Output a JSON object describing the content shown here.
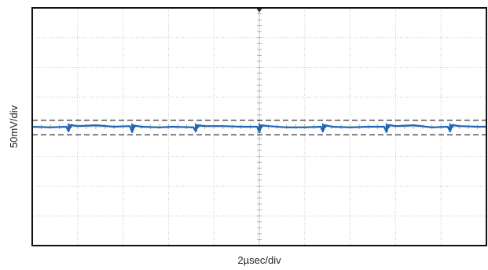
{
  "chart_data": {
    "type": "line",
    "title": "",
    "xlabel": "2µsec/div",
    "ylabel": "50mV/div",
    "grid": true,
    "divisions": {
      "x": 10,
      "y": 8
    },
    "xlim": [
      0,
      10
    ],
    "ylim": [
      -4,
      4
    ],
    "reference_lines": [
      0.22,
      -0.27
    ],
    "series": [
      {
        "color": "#1f64b4",
        "x": [
          0,
          0.4,
          0.75,
          0.8,
          0.85,
          1.0,
          1.4,
          1.8,
          2.15,
          2.2,
          2.25,
          2.4,
          2.8,
          3.1,
          3.55,
          3.6,
          3.65,
          3.8,
          4.2,
          4.6,
          4.95,
          5.0,
          5.05,
          5.2,
          5.6,
          6.0,
          6.35,
          6.4,
          6.45,
          6.6,
          7.0,
          7.4,
          7.75,
          7.8,
          7.85,
          8.0,
          8.4,
          8.8,
          9.15,
          9.2,
          9.25,
          9.4,
          9.8,
          10
        ],
        "y": [
          0.0,
          -0.02,
          0.0,
          -0.15,
          0.06,
          0.02,
          0.05,
          0.0,
          0.02,
          -0.18,
          0.04,
          0.0,
          -0.02,
          0.0,
          -0.02,
          -0.16,
          0.05,
          0.02,
          0.02,
          0.0,
          0.0,
          -0.18,
          0.05,
          0.02,
          -0.02,
          -0.02,
          0.0,
          -0.16,
          0.05,
          0.0,
          -0.02,
          0.0,
          0.0,
          -0.18,
          0.06,
          0.02,
          0.05,
          -0.02,
          0.0,
          -0.16,
          0.06,
          0.02,
          0.0,
          0.0
        ]
      }
    ]
  }
}
